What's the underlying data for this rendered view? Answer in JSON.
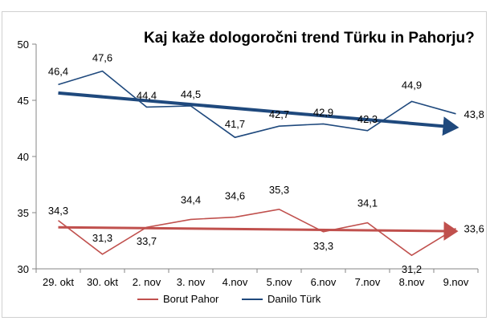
{
  "chart_data": {
    "type": "line",
    "title": "Kaj kaže dologoročni trend Türku in Pahorju?",
    "categories": [
      "29. okt",
      "30. okt",
      "2. nov",
      "3. nov",
      "4.nov",
      "5.nov",
      "6.nov",
      "7.nov",
      "8.nov",
      "9.nov"
    ],
    "ylim": [
      30,
      50
    ],
    "yticks": [
      "30",
      "35",
      "40",
      "45",
      "50"
    ],
    "grid": false,
    "legend_position": "bottom",
    "series": [
      {
        "name": "Borut Pahor",
        "values": [
          34.3,
          31.3,
          33.7,
          34.4,
          34.6,
          35.3,
          33.3,
          34.1,
          31.2,
          33.6
        ],
        "labels": [
          "34,3",
          "31,3",
          "33,7",
          "34,4",
          "34,6",
          "35,3",
          "33,3",
          "34,1",
          "31,2",
          "33,6"
        ],
        "color": "#c0504d",
        "trend": [
          33.7,
          33.35
        ]
      },
      {
        "name": "Danilo Türk",
        "values": [
          46.4,
          47.6,
          44.4,
          44.5,
          41.7,
          42.7,
          42.9,
          42.3,
          44.9,
          43.8
        ],
        "labels": [
          "46,4",
          "47,6",
          "44,4",
          "44,5",
          "41,7",
          "42,7",
          "42,9",
          "42,3",
          "44,9",
          "43,8"
        ],
        "color": "#1f497d",
        "trend": [
          45.65,
          42.6
        ]
      }
    ]
  }
}
